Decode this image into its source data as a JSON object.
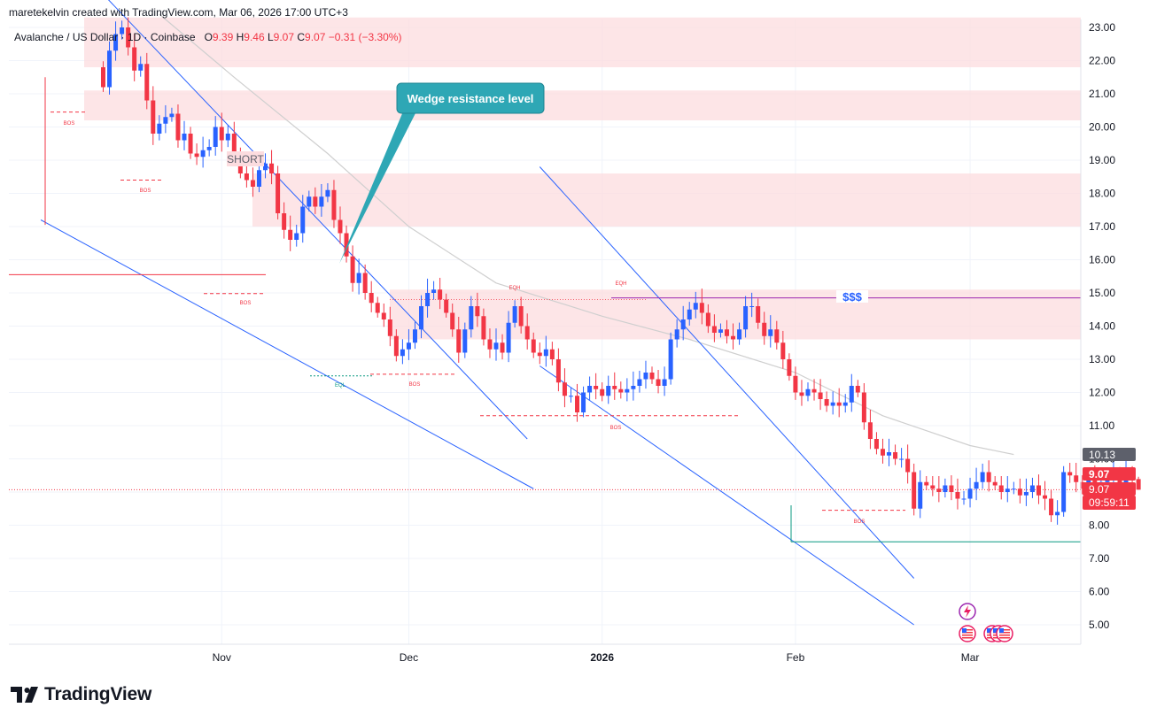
{
  "header": {
    "author_line": "maretekelvin created with TradingView.com, Mar 06, 2026 17:00 UTC+3"
  },
  "symbol": {
    "name": "Avalanche / US Dollar · 1D · Coinbase",
    "o_label": "O",
    "o": "9.39",
    "h_label": "H",
    "h": "9.46",
    "l_label": "L",
    "l": "9.07",
    "c_label": "C",
    "c": "9.07",
    "change": "−0.31 (−3.30%)"
  },
  "footer": {
    "brand": "TradingView"
  },
  "colors": {
    "up": "#2962ff",
    "down": "#f23645",
    "zone": "#fcdcdf",
    "trendline": "#2962ff",
    "ma": "#cfcfcf",
    "callout": "#2ea7b5",
    "support": "#089981"
  },
  "icons": [
    "lightning-event-icon",
    "us-flag-event-icon"
  ],
  "chart_data": {
    "type": "candlestick",
    "y_axis": {
      "ticks": [
        "23.00",
        "22.00",
        "21.00",
        "20.00",
        "19.00",
        "18.00",
        "17.00",
        "16.00",
        "15.00",
        "14.00",
        "13.00",
        "12.00",
        "11.00",
        "10.00",
        "9.00",
        "8.00",
        "7.00",
        "6.00",
        "5.00"
      ],
      "range": [
        4.4,
        23.3
      ]
    },
    "x_axis": {
      "ticks": [
        {
          "label": "Nov",
          "date": "2025-11-01"
        },
        {
          "label": "Dec",
          "date": "2025-12-01"
        },
        {
          "label": "2026",
          "date": "2026-01-01"
        },
        {
          "label": "Feb",
          "date": "2026-02-01"
        },
        {
          "label": "Mar",
          "date": "2026-03-01"
        }
      ],
      "range": [
        "2025-10-12",
        "2026-03-26"
      ]
    },
    "price_badges": [
      {
        "label": "10.13",
        "value": 10.13,
        "type": "moving-average"
      },
      {
        "label": "9.07",
        "value": 9.07,
        "type": "last-price"
      },
      {
        "label": "9.07",
        "value": 9.07,
        "type": "close"
      },
      {
        "label": "09:59:11",
        "value": 9.07,
        "type": "countdown"
      }
    ],
    "zones": [
      {
        "from": 21.8,
        "to": 23.3
      },
      {
        "from": 20.2,
        "to": 21.1
      },
      {
        "from": 17.0,
        "to": 18.6
      },
      {
        "from": 13.6,
        "to": 15.1
      }
    ],
    "annotations": {
      "callout": "Wedge resistance level",
      "short_label": "SHORT",
      "liquidity_label": "$$$",
      "bos": [
        "BOS",
        "BOS",
        "BOS",
        "BOS",
        "BOS",
        "BOS"
      ],
      "eqh": [
        "EQH",
        "EQH"
      ],
      "eql": [
        "EQL"
      ]
    },
    "candles_summary": {
      "start_date": "2025-10-13",
      "open": 21.8,
      "last_close": 9.07,
      "last_high": 9.46,
      "last_low": 9.07,
      "closes": [
        21.2,
        22.3,
        22.8,
        23.0,
        22.4,
        21.7,
        21.9,
        20.8,
        19.8,
        20.1,
        20.3,
        20.4,
        19.6,
        19.8,
        19.2,
        19.1,
        19.3,
        19.4,
        20.0,
        19.6,
        19.8,
        19.2,
        18.6,
        18.4,
        18.2,
        18.7,
        18.9,
        18.6,
        17.4,
        16.9,
        16.6,
        16.8,
        17.6,
        17.9,
        17.6,
        17.9,
        18.1,
        17.2,
        16.8,
        16.1,
        15.3,
        15.6,
        15.0,
        14.7,
        14.4,
        14.2,
        13.7,
        13.1,
        13.3,
        13.5,
        13.9,
        14.6,
        15.0,
        15.1,
        14.8,
        14.4,
        13.9,
        13.2,
        13.9,
        14.6,
        14.3,
        13.6,
        13.3,
        13.5,
        13.2,
        14.1,
        14.6,
        14.0,
        13.6,
        13.2,
        13.1,
        13.3,
        13.0,
        12.3,
        11.9,
        11.9,
        11.4,
        12.0,
        12.2,
        12.1,
        11.9,
        12.2,
        12.1,
        12.0,
        12.1,
        12.2,
        12.4,
        12.6,
        12.4,
        12.2,
        12.4,
        13.6,
        13.9,
        14.2,
        14.5,
        14.7,
        14.4,
        14.0,
        13.8,
        13.9,
        13.7,
        13.6,
        13.9,
        14.6,
        14.6,
        14.1,
        13.7,
        13.9,
        13.5,
        13.0,
        12.5,
        12.0,
        11.9,
        12.1,
        12.0,
        11.8,
        11.6,
        11.7,
        11.6,
        11.7,
        12.2,
        12.0,
        11.1,
        10.6,
        10.3,
        10.1,
        10.2,
        10.0,
        10.0,
        9.6,
        8.5,
        9.3,
        9.2,
        9.1,
        9.0,
        9.2,
        9.0,
        8.8,
        8.8,
        9.1,
        9.3,
        9.6,
        9.3,
        9.2,
        9.0,
        9.1,
        9.1,
        8.9,
        9.0,
        9.2,
        8.9,
        8.8,
        8.3,
        8.4,
        9.6,
        9.5,
        9.3,
        9.1,
        9.4,
        9.2,
        9.3,
        9.4,
        9.5,
        9.2,
        9.6,
        9.4,
        9.07
      ]
    },
    "moving_average": [
      {
        "date": "2025-10-22",
        "value": 23.4
      },
      {
        "date": "2025-11-03",
        "value": 21.5
      },
      {
        "date": "2025-11-18",
        "value": 19.2
      },
      {
        "date": "2025-12-01",
        "value": 17.0
      },
      {
        "date": "2025-12-15",
        "value": 15.3
      },
      {
        "date": "2026-01-01",
        "value": 14.3
      },
      {
        "date": "2026-01-15",
        "value": 13.6
      },
      {
        "date": "2026-02-01",
        "value": 12.6
      },
      {
        "date": "2026-02-15",
        "value": 11.3
      },
      {
        "date": "2026-03-01",
        "value": 10.4
      },
      {
        "date": "2026-03-08",
        "value": 10.13
      }
    ]
  }
}
